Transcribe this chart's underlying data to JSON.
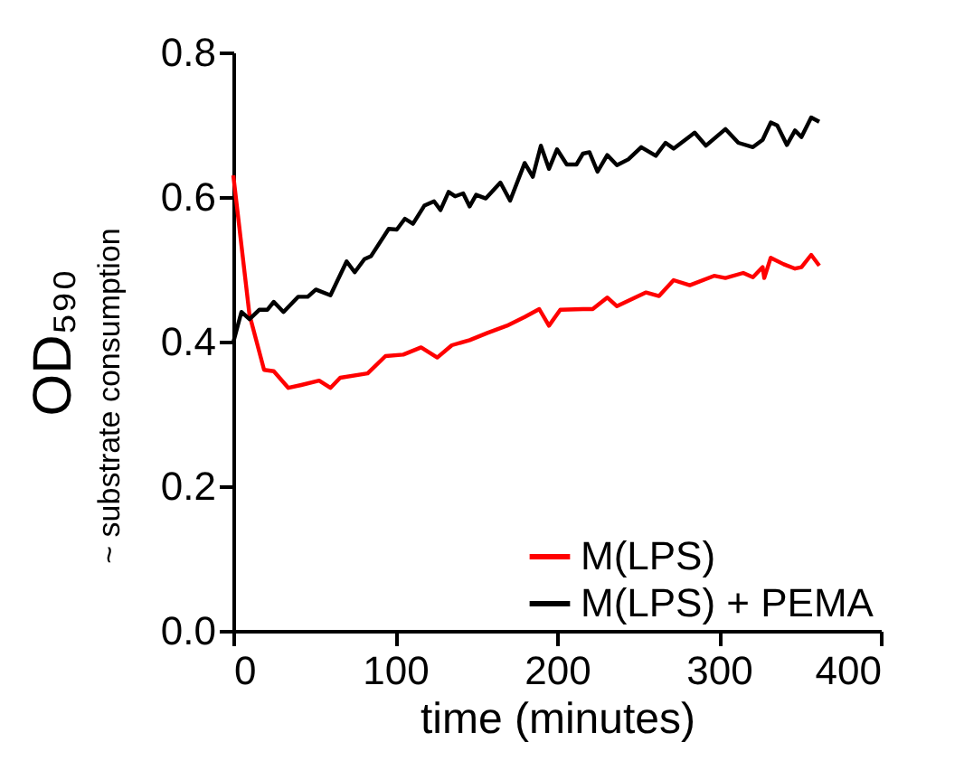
{
  "chart_data": {
    "type": "line",
    "xlabel": "time (minutes)",
    "ylabel": "OD₅₉₀",
    "annotations": [
      "~ substrate consumption"
    ],
    "xlim": [
      0,
      400
    ],
    "xticks": [
      0,
      100,
      200,
      300,
      400
    ],
    "ylim": [
      0,
      0.8
    ],
    "yticks": [
      {
        "value": 0,
        "label": "0.0"
      },
      {
        "value": 0.2,
        "label": "0.2"
      },
      {
        "value": 0.4,
        "label": "0.4"
      },
      {
        "value": 0.6,
        "label": "0.6"
      },
      {
        "value": 0.8,
        "label": "0.8"
      }
    ],
    "grid": false,
    "legend": "bottom right",
    "marker": "none",
    "line_style": "solid",
    "series": [
      {
        "name": "M(LPS)",
        "color": "#ff0000",
        "x": [
          0,
          10,
          19,
          25,
          34,
          42,
          53,
          60,
          66,
          83,
          94,
          105,
          116,
          126,
          135,
          146,
          157,
          169,
          180,
          189,
          195,
          202,
          216,
          222,
          231,
          237,
          255,
          263,
          272,
          282,
          297,
          304,
          315,
          321,
          327,
          328,
          332,
          340,
          347,
          351,
          357,
          362
        ],
        "values": [
          0.63,
          0.437,
          0.361,
          0.359,
          0.336,
          0.34,
          0.346,
          0.336,
          0.35,
          0.356,
          0.38,
          0.382,
          0.392,
          0.378,
          0.395,
          0.402,
          0.412,
          0.422,
          0.434,
          0.445,
          0.422,
          0.444,
          0.445,
          0.445,
          0.461,
          0.449,
          0.468,
          0.463,
          0.485,
          0.478,
          0.491,
          0.488,
          0.495,
          0.489,
          0.503,
          0.488,
          0.516,
          0.507,
          0.501,
          0.503,
          0.52,
          0.505
        ]
      },
      {
        "name": "M(LPS) + PEMA",
        "color": "#000000",
        "x": [
          0,
          5,
          10,
          16,
          21,
          25,
          31,
          40,
          46,
          51,
          60,
          70,
          75,
          81,
          85,
          96,
          101,
          106,
          111,
          118,
          124,
          128,
          133,
          137,
          142,
          146,
          150,
          156,
          165,
          171,
          180,
          185,
          190,
          195,
          200,
          206,
          212,
          216,
          220,
          225,
          231,
          237,
          244,
          252,
          261,
          267,
          272,
          285,
          292,
          304,
          312,
          321,
          327,
          332,
          336,
          342,
          347,
          351,
          357,
          362
        ],
        "values": [
          0.399,
          0.441,
          0.431,
          0.444,
          0.444,
          0.455,
          0.441,
          0.462,
          0.462,
          0.472,
          0.464,
          0.511,
          0.496,
          0.514,
          0.518,
          0.556,
          0.555,
          0.57,
          0.563,
          0.588,
          0.594,
          0.582,
          0.607,
          0.601,
          0.605,
          0.587,
          0.603,
          0.598,
          0.62,
          0.595,
          0.647,
          0.628,
          0.671,
          0.639,
          0.666,
          0.645,
          0.645,
          0.66,
          0.662,
          0.635,
          0.658,
          0.644,
          0.652,
          0.669,
          0.657,
          0.675,
          0.667,
          0.689,
          0.671,
          0.694,
          0.675,
          0.669,
          0.679,
          0.703,
          0.699,
          0.672,
          0.692,
          0.683,
          0.71,
          0.704
        ]
      }
    ]
  }
}
